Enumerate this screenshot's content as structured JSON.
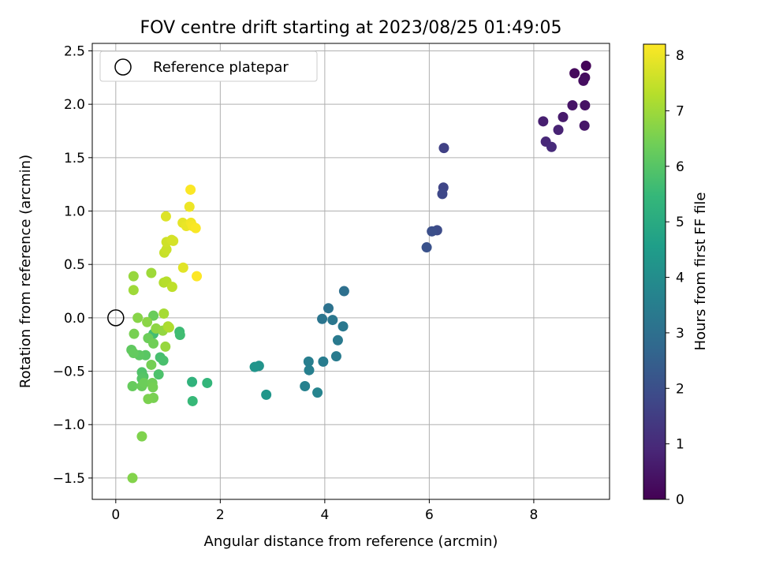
{
  "chart_data": {
    "type": "scatter",
    "title": "FOV centre drift starting at 2023/08/25 01:49:05",
    "xlabel": "Angular distance from reference (arcmin)",
    "ylabel": "Rotation from reference (arcmin)",
    "xlim": [
      -0.45,
      9.45
    ],
    "ylim": [
      -1.7,
      2.57
    ],
    "xticks": [
      0,
      2,
      4,
      6,
      8
    ],
    "xtick_labels": [
      "0",
      "2",
      "4",
      "6",
      "8"
    ],
    "yticks": [
      -1.5,
      -1.0,
      -0.5,
      0.0,
      0.5,
      1.0,
      1.5,
      2.0,
      2.5
    ],
    "ytick_labels": [
      "−1.5",
      "−1.0",
      "−0.5",
      "0.0",
      "0.5",
      "1.0",
      "1.5",
      "2.0",
      "2.5"
    ],
    "grid": true,
    "legend": {
      "position": "top-left",
      "entries": [
        {
          "label": "Reference platepar",
          "marker": "open-circle",
          "x": 0,
          "y": 0
        }
      ]
    },
    "colorbar": {
      "label": "Hours from first FF file",
      "range": [
        0,
        8.2
      ],
      "ticks": [
        0,
        1,
        2,
        3,
        4,
        5,
        6,
        7,
        8
      ],
      "tick_labels": [
        "0",
        "1",
        "2",
        "3",
        "4",
        "5",
        "6",
        "7",
        "8"
      ],
      "colormap": "viridis",
      "stops": [
        "#440154",
        "#482878",
        "#3e4989",
        "#31688e",
        "#26828e",
        "#1f9e89",
        "#35b779",
        "#6ece58",
        "#b5de2b",
        "#fde725"
      ]
    },
    "series": [
      {
        "points": [
          [
            9.0,
            2.36,
            0.1
          ],
          [
            8.78,
            2.29,
            0.2
          ],
          [
            8.98,
            2.25,
            0.25
          ],
          [
            8.95,
            2.22,
            0.3
          ],
          [
            8.98,
            1.99,
            0.4
          ],
          [
            8.74,
            1.99,
            0.45
          ],
          [
            8.97,
            1.8,
            0.5
          ],
          [
            8.56,
            1.88,
            0.6
          ],
          [
            8.18,
            1.84,
            0.7
          ],
          [
            8.47,
            1.76,
            0.8
          ],
          [
            8.23,
            1.65,
            0.9
          ],
          [
            8.34,
            1.6,
            1.0
          ],
          [
            6.28,
            1.59,
            1.6
          ],
          [
            6.27,
            1.22,
            1.7
          ],
          [
            6.25,
            1.16,
            1.8
          ],
          [
            6.15,
            0.82,
            1.9
          ],
          [
            6.05,
            0.81,
            2.0
          ],
          [
            5.95,
            0.66,
            2.1
          ],
          [
            4.37,
            0.25,
            3.0
          ],
          [
            4.07,
            0.09,
            3.1
          ],
          [
            3.95,
            -0.01,
            3.2
          ],
          [
            4.15,
            -0.02,
            3.25
          ],
          [
            4.35,
            -0.08,
            3.3
          ],
          [
            4.25,
            -0.21,
            3.35
          ],
          [
            4.22,
            -0.36,
            3.4
          ],
          [
            3.97,
            -0.41,
            3.45
          ],
          [
            3.69,
            -0.41,
            3.5
          ],
          [
            3.7,
            -0.49,
            3.55
          ],
          [
            3.62,
            -0.64,
            3.6
          ],
          [
            3.86,
            -0.7,
            3.7
          ],
          [
            2.74,
            -0.45,
            4.2
          ],
          [
            2.66,
            -0.46,
            4.25
          ],
          [
            2.88,
            -0.72,
            4.3
          ],
          [
            1.46,
            -0.6,
            5.3
          ],
          [
            1.75,
            -0.61,
            5.4
          ],
          [
            1.47,
            -0.78,
            5.5
          ],
          [
            1.22,
            -0.13,
            5.6
          ],
          [
            1.23,
            -0.16,
            5.65
          ],
          [
            0.72,
            -0.15,
            5.7
          ],
          [
            0.85,
            -0.37,
            5.75
          ],
          [
            0.91,
            -0.4,
            5.8
          ],
          [
            0.82,
            -0.53,
            5.85
          ],
          [
            0.5,
            -0.51,
            5.9
          ],
          [
            0.53,
            -0.55,
            5.95
          ],
          [
            0.5,
            -0.57,
            6.0
          ],
          [
            0.57,
            -0.35,
            6.05
          ],
          [
            0.45,
            -0.35,
            6.1
          ],
          [
            0.3,
            -0.3,
            6.15
          ],
          [
            0.34,
            -0.33,
            6.2
          ],
          [
            0.32,
            -0.64,
            6.25
          ],
          [
            0.5,
            -0.64,
            6.3
          ],
          [
            0.54,
            -0.61,
            6.35
          ],
          [
            0.7,
            -0.61,
            6.4
          ],
          [
            0.71,
            -0.65,
            6.45
          ],
          [
            0.72,
            -0.75,
            6.5
          ],
          [
            0.62,
            -0.76,
            6.55
          ],
          [
            0.5,
            -1.11,
            6.6
          ],
          [
            0.32,
            -1.5,
            6.65
          ],
          [
            0.72,
            0.02,
            6.3
          ],
          [
            0.62,
            -0.19,
            6.35
          ],
          [
            0.72,
            -0.24,
            6.4
          ],
          [
            0.68,
            -0.44,
            6.45
          ],
          [
            0.35,
            -0.15,
            6.5
          ],
          [
            0.42,
            0.0,
            6.7
          ],
          [
            0.6,
            -0.04,
            6.75
          ],
          [
            0.77,
            -0.1,
            6.8
          ],
          [
            0.9,
            -0.12,
            6.85
          ],
          [
            0.95,
            -0.27,
            6.9
          ],
          [
            0.34,
            0.39,
            6.9
          ],
          [
            0.34,
            0.26,
            7.0
          ],
          [
            0.68,
            0.42,
            7.0
          ],
          [
            0.92,
            0.04,
            7.1
          ],
          [
            1.0,
            -0.08,
            7.15
          ],
          [
            1.02,
            -0.09,
            7.2
          ],
          [
            0.92,
            0.33,
            7.25
          ],
          [
            0.97,
            0.34,
            7.3
          ],
          [
            1.08,
            0.29,
            7.4
          ],
          [
            0.93,
            0.61,
            7.5
          ],
          [
            0.97,
            0.64,
            7.55
          ],
          [
            0.97,
            0.71,
            7.6
          ],
          [
            1.07,
            0.73,
            7.65
          ],
          [
            1.1,
            0.72,
            7.7
          ],
          [
            0.96,
            0.95,
            7.8
          ],
          [
            1.29,
            0.47,
            7.85
          ],
          [
            1.28,
            0.89,
            7.9
          ],
          [
            1.35,
            0.86,
            7.95
          ],
          [
            1.41,
            1.04,
            8.0
          ],
          [
            1.44,
            0.89,
            8.05
          ],
          [
            1.47,
            0.86,
            8.1
          ],
          [
            1.53,
            0.84,
            8.15
          ],
          [
            1.43,
            1.2,
            8.18
          ],
          [
            1.55,
            0.39,
            8.2
          ]
        ]
      }
    ]
  }
}
